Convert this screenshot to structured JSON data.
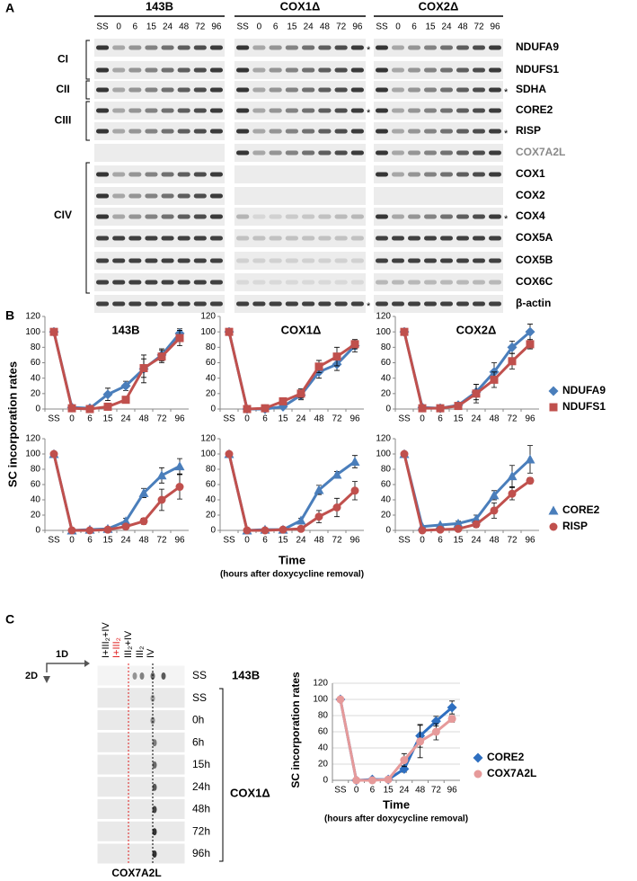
{
  "panel_a": {
    "label": "A",
    "groups": [
      "143B",
      "COX1Δ",
      "COX2Δ"
    ],
    "lanes": [
      "SS",
      "0",
      "6",
      "15",
      "24",
      "48",
      "72",
      "96"
    ],
    "complexes": [
      "CI",
      "CII",
      "CIII",
      "CIV"
    ],
    "proteins": [
      "NDUFA9",
      "NDUFS1",
      "SDHA",
      "CORE2",
      "RISP",
      "COX7A2L",
      "COX1",
      "COX2",
      "COX4",
      "COX5A",
      "COX5B",
      "COX6C",
      "β-actin"
    ],
    "asterisk": "*"
  },
  "panel_b": {
    "label": "B"
  },
  "panel_c": {
    "label": "C",
    "dir_1": "1D",
    "dir_2": "2D",
    "lane_labels": [
      "I+III₂+IV",
      "I+III₂",
      "III₂+IV",
      "III₂",
      "IV"
    ],
    "row_labels": [
      "SS",
      "SS",
      "0h",
      "6h",
      "15h",
      "24h",
      "48h",
      "72h",
      "96h"
    ],
    "cell_lines": [
      "143B",
      "COX1Δ"
    ],
    "blot": "COX7A2L"
  },
  "chart_data": [
    {
      "type": "line",
      "panel_titles": [
        "143B",
        "COX1Δ",
        "COX2Δ"
      ],
      "ylabel": "SC incorporation rates",
      "categories": [
        "SS",
        "0",
        "6",
        "15",
        "24",
        "48",
        "72",
        "96"
      ],
      "ylim": [
        0,
        120
      ],
      "yticks": [
        0,
        20,
        40,
        60,
        80,
        100,
        120
      ],
      "grid": false,
      "series": [
        {
          "name": "NDUFA9",
          "color": "#4a7ebb",
          "marker": "diamond",
          "values": [
            [
              100,
              2,
              1,
              19,
              30,
              52,
              70,
              98
            ],
            [
              100,
              0,
              0,
              3,
              18,
              48,
              58,
              82
            ],
            [
              100,
              2,
              1,
              5,
              22,
              48,
              80,
              100
            ]
          ],
          "errors": [
            [
              0,
              0,
              0,
              8,
              6,
              18,
              8,
              6
            ],
            [
              0,
              0,
              0,
              2,
              6,
              8,
              8,
              8
            ],
            [
              0,
              0,
              0,
              3,
              10,
              12,
              8,
              10
            ]
          ]
        },
        {
          "name": "NDUFS1",
          "color": "#c0504d",
          "marker": "square",
          "values": [
            [
              100,
              1,
              0,
              3,
              12,
              53,
              68,
              92
            ],
            [
              100,
              0,
              1,
              10,
              20,
              55,
              68,
              84
            ],
            [
              100,
              1,
              1,
              4,
              20,
              38,
              62,
              84
            ]
          ],
          "errors": [
            [
              0,
              0,
              0,
              2,
              4,
              12,
              8,
              10
            ],
            [
              0,
              0,
              0,
              3,
              6,
              8,
              12,
              6
            ],
            [
              0,
              0,
              0,
              2,
              12,
              10,
              10,
              6
            ]
          ]
        }
      ]
    },
    {
      "type": "line",
      "xlabel": "Time",
      "xlabel_note": "(hours after doxycycline removal)",
      "categories": [
        "SS",
        "0",
        "6",
        "15",
        "24",
        "48",
        "72",
        "96"
      ],
      "ylim": [
        0,
        120
      ],
      "yticks": [
        0,
        20,
        40,
        60,
        80,
        100,
        120
      ],
      "grid": false,
      "series": [
        {
          "name": "CORE2",
          "color": "#4a7ebb",
          "marker": "triangle",
          "values": [
            [
              100,
              0,
              1,
              2,
              12,
              49,
              72,
              84
            ],
            [
              100,
              0,
              1,
              1,
              13,
              53,
              73,
              90
            ],
            [
              100,
              5,
              7,
              9,
              15,
              46,
              71,
              93
            ]
          ],
          "errors": [
            [
              0,
              0,
              0,
              2,
              4,
              6,
              10,
              10
            ],
            [
              0,
              0,
              0,
              1,
              3,
              6,
              4,
              8
            ],
            [
              0,
              0,
              0,
              3,
              5,
              6,
              14,
              18
            ]
          ]
        },
        {
          "name": "RISP",
          "color": "#c0504d",
          "marker": "circle",
          "values": [
            [
              100,
              0,
              0,
              1,
              5,
              12,
              40,
              57
            ],
            [
              100,
              0,
              0,
              1,
              2,
              18,
              30,
              52
            ],
            [
              100,
              0,
              1,
              2,
              8,
              26,
              48,
              65
            ]
          ],
          "errors": [
            [
              0,
              0,
              0,
              1,
              3,
              4,
              14,
              16
            ],
            [
              0,
              0,
              0,
              1,
              2,
              8,
              12,
              12
            ],
            [
              0,
              0,
              0,
              1,
              4,
              10,
              8,
              4
            ]
          ]
        }
      ]
    },
    {
      "type": "line",
      "ylabel": "SC incorporation rates",
      "xlabel": "Time",
      "xlabel_note": "(hours after doxycycline removal)",
      "categories": [
        "SS",
        "0",
        "6",
        "15",
        "24",
        "48",
        "72",
        "96"
      ],
      "ylim": [
        0,
        120
      ],
      "yticks": [
        0,
        20,
        40,
        60,
        80,
        100,
        120
      ],
      "grid": true,
      "series": [
        {
          "name": "CORE2",
          "color": "#2e6fc0",
          "marker": "diamond",
          "values": [
            100,
            0,
            1,
            1,
            14,
            55,
            73,
            90
          ],
          "errors": [
            0,
            0,
            0,
            1,
            4,
            14,
            6,
            8
          ]
        },
        {
          "name": "COX7A2L",
          "color": "#e69a9a",
          "marker": "circle",
          "values": [
            100,
            0,
            0,
            1,
            25,
            48,
            60,
            76
          ],
          "errors": [
            0,
            0,
            0,
            1,
            8,
            20,
            10,
            4
          ]
        }
      ]
    }
  ]
}
